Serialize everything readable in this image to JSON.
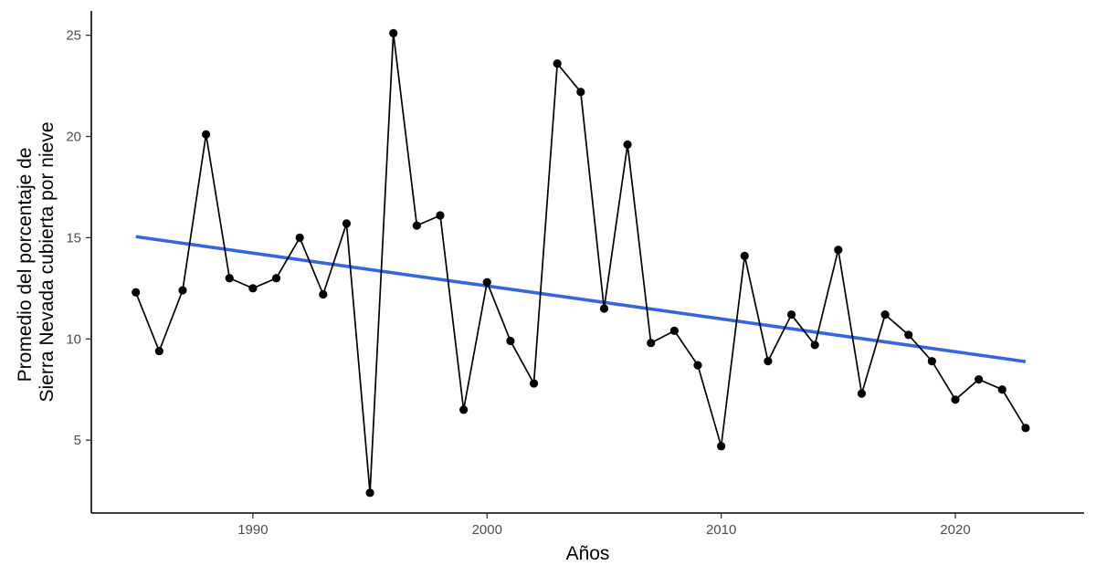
{
  "chart_data": {
    "type": "line",
    "xlabel": "Años",
    "ylabel_lines": [
      "Promedio del porcentaje de",
      "Sierra Nevada cubierta por nieve"
    ],
    "xlim": [
      1983.1,
      2025.5
    ],
    "ylim": [
      1.4,
      26.2
    ],
    "x_ticks": [
      1990,
      2000,
      2010,
      2020
    ],
    "y_ticks": [
      5,
      10,
      15,
      20,
      25
    ],
    "grid": false,
    "legend": "none",
    "series": [
      {
        "x": [
          1985,
          1986,
          1987,
          1988,
          1989,
          1990,
          1991,
          1992,
          1993,
          1994,
          1995,
          1996,
          1997,
          1998,
          1999,
          2000,
          2001,
          2002,
          2003,
          2004,
          2005,
          2006,
          2007,
          2008,
          2009,
          2010,
          2011,
          2012,
          2013,
          2014,
          2015,
          2016,
          2017,
          2018,
          2019,
          2020,
          2021,
          2022,
          2023
        ],
        "values": [
          12.3,
          9.4,
          12.4,
          20.1,
          13.0,
          12.5,
          13.0,
          15.0,
          12.2,
          15.7,
          2.4,
          25.1,
          15.6,
          16.1,
          6.5,
          12.8,
          9.9,
          7.8,
          23.6,
          22.2,
          11.5,
          19.6,
          9.8,
          10.4,
          8.7,
          4.7,
          14.1,
          8.9,
          11.2,
          9.7,
          14.4,
          7.3,
          11.2,
          10.2,
          8.9,
          7.0,
          8.0,
          7.5,
          5.6
        ],
        "color": "#000000"
      }
    ],
    "trend_line": {
      "x": [
        1985,
        2023
      ],
      "values": [
        15.05,
        8.88
      ],
      "color": "#3366e0"
    }
  }
}
